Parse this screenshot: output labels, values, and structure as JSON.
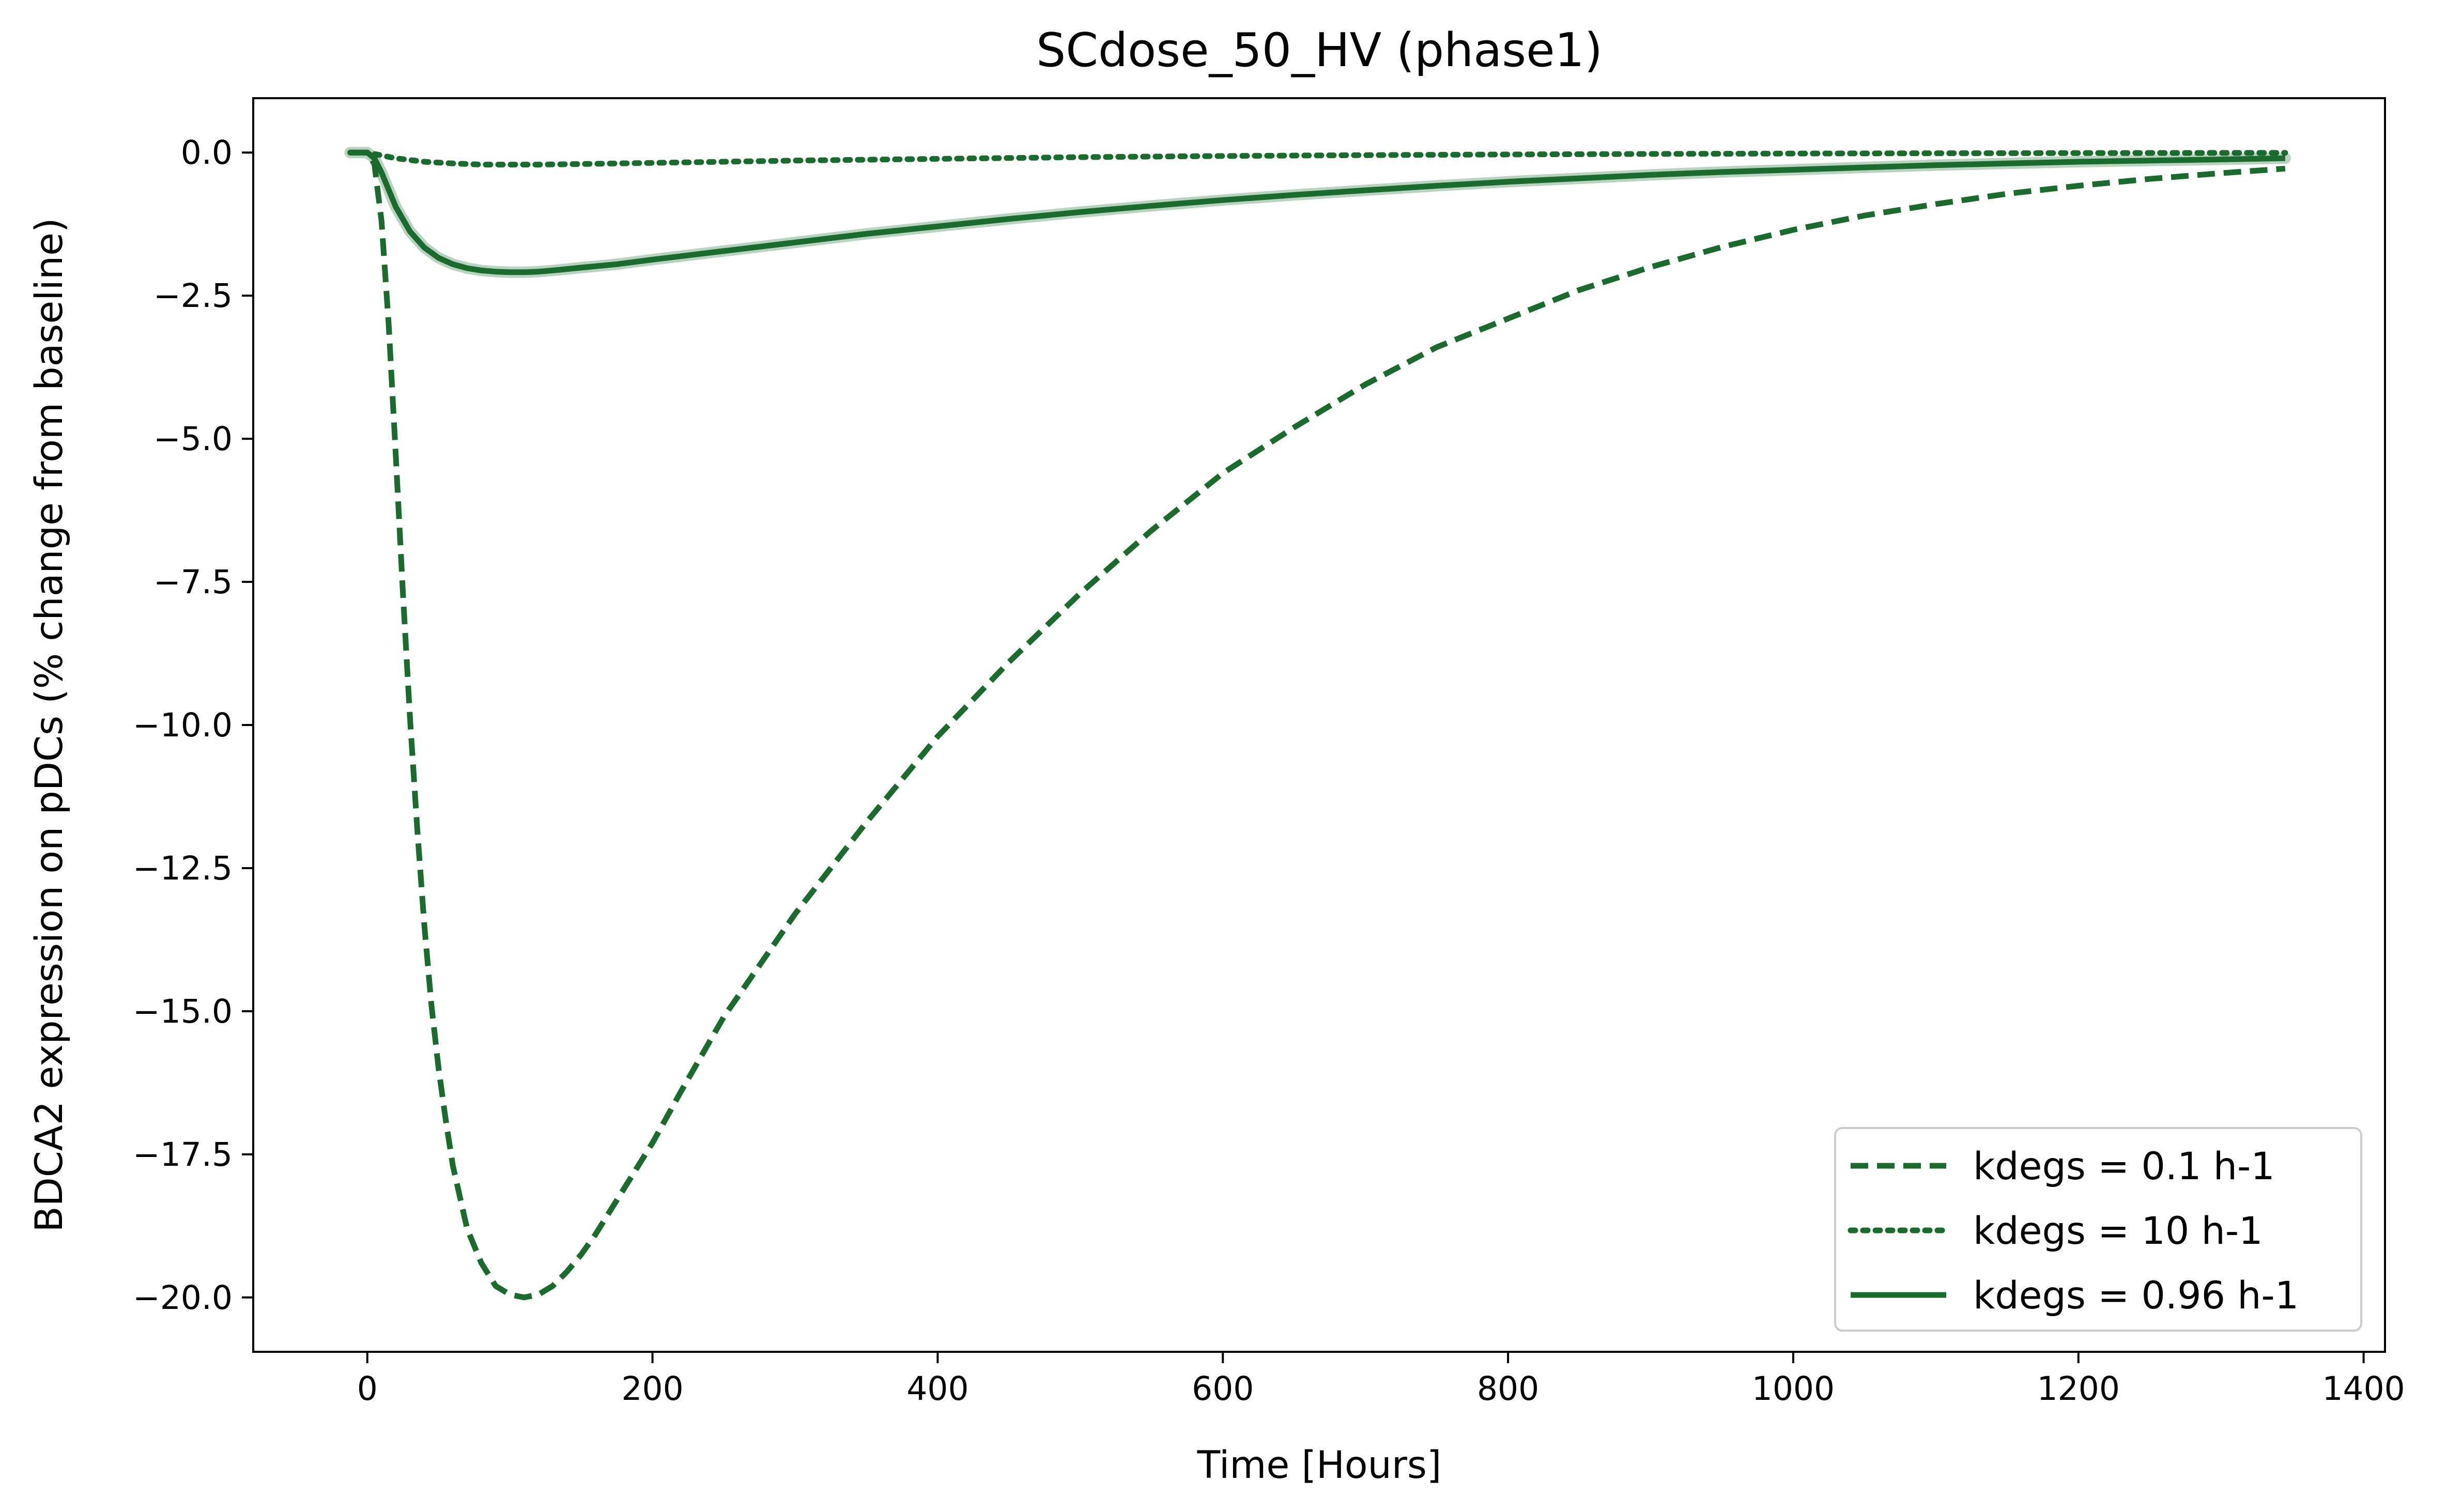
{
  "chart_data": {
    "type": "line",
    "title": "SCdose_50_HV (phase1)",
    "xlabel": "Time [Hours]",
    "ylabel": "BDCA2 expression on pDCs (% change from baseline)",
    "xlim": [
      -80,
      1415
    ],
    "ylim": [
      -20.95,
      0.95
    ],
    "xticks": [
      0,
      200,
      400,
      600,
      800,
      1000,
      1200,
      1400
    ],
    "xtick_labels": [
      "0",
      "200",
      "400",
      "600",
      "800",
      "1000",
      "1200",
      "1400"
    ],
    "yticks": [
      0,
      -2.5,
      -5,
      -7.5,
      -10,
      -12.5,
      -15,
      -17.5,
      -20
    ],
    "ytick_labels": [
      "0.0",
      "−2.5",
      "−5.0",
      "−7.5",
      "−10.0",
      "−12.5",
      "−15.0",
      "−17.5",
      "−20.0"
    ],
    "grid": false,
    "legend_position": "lower-right",
    "color": "#1b6b2f",
    "series": [
      {
        "name": "kdegs = 0.1 h-1",
        "style": "dashed",
        "x": [
          -12,
          0,
          5,
          10,
          15,
          20,
          25,
          30,
          35,
          40,
          45,
          50,
          55,
          60,
          70,
          80,
          90,
          100,
          110,
          120,
          130,
          140,
          150,
          160,
          170,
          180,
          200,
          220,
          250,
          300,
          350,
          400,
          450,
          500,
          550,
          600,
          650,
          700,
          750,
          800,
          850,
          900,
          950,
          1000,
          1050,
          1100,
          1150,
          1200,
          1250,
          1300,
          1345
        ],
        "y": [
          0,
          0,
          -0.2,
          -1.2,
          -3.0,
          -5.3,
          -7.7,
          -9.9,
          -11.8,
          -13.5,
          -14.9,
          -16.0,
          -16.9,
          -17.7,
          -18.8,
          -19.4,
          -19.8,
          -19.95,
          -20.0,
          -19.95,
          -19.8,
          -19.55,
          -19.25,
          -18.9,
          -18.5,
          -18.1,
          -17.3,
          -16.4,
          -15.1,
          -13.3,
          -11.7,
          -10.2,
          -8.9,
          -7.7,
          -6.6,
          -5.6,
          -4.8,
          -4.05,
          -3.4,
          -2.9,
          -2.4,
          -2.0,
          -1.65,
          -1.35,
          -1.1,
          -0.9,
          -0.72,
          -0.58,
          -0.46,
          -0.36,
          -0.28
        ]
      },
      {
        "name": "kdegs = 10 h-1",
        "style": "dotted",
        "x": [
          -12,
          0,
          10,
          20,
          40,
          60,
          80,
          100,
          120,
          150,
          200,
          250,
          300,
          400,
          500,
          600,
          700,
          800,
          900,
          1000,
          1100,
          1200,
          1300,
          1345
        ],
        "y": [
          0,
          0,
          -0.05,
          -0.1,
          -0.16,
          -0.19,
          -0.21,
          -0.21,
          -0.21,
          -0.2,
          -0.18,
          -0.16,
          -0.14,
          -0.11,
          -0.08,
          -0.06,
          -0.045,
          -0.033,
          -0.024,
          -0.017,
          -0.012,
          -0.009,
          -0.006,
          -0.005
        ]
      },
      {
        "name": "kdegs = 0.96 h-1",
        "style": "solid",
        "x": [
          -12,
          0,
          5,
          10,
          15,
          20,
          30,
          40,
          50,
          60,
          70,
          80,
          90,
          100,
          110,
          120,
          130,
          150,
          175,
          200,
          250,
          300,
          350,
          400,
          450,
          500,
          550,
          600,
          650,
          700,
          750,
          800,
          850,
          900,
          950,
          1000,
          1050,
          1100,
          1150,
          1200,
          1250,
          1300,
          1345
        ],
        "y": [
          0,
          0,
          -0.1,
          -0.35,
          -0.65,
          -0.95,
          -1.38,
          -1.66,
          -1.84,
          -1.95,
          -2.02,
          -2.06,
          -2.08,
          -2.09,
          -2.09,
          -2.08,
          -2.06,
          -2.01,
          -1.95,
          -1.87,
          -1.72,
          -1.57,
          -1.42,
          -1.29,
          -1.16,
          -1.04,
          -0.93,
          -0.83,
          -0.74,
          -0.66,
          -0.58,
          -0.51,
          -0.45,
          -0.39,
          -0.34,
          -0.3,
          -0.26,
          -0.22,
          -0.19,
          -0.16,
          -0.14,
          -0.12,
          -0.1
        ]
      }
    ]
  }
}
